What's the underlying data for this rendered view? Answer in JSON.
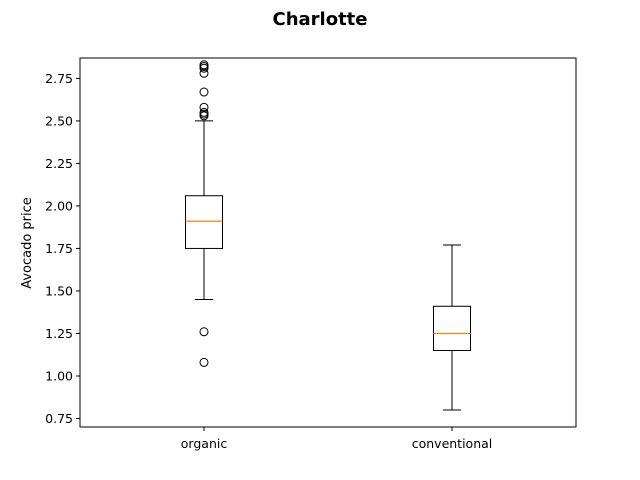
{
  "chart_data": {
    "type": "boxplot",
    "title": "Charlotte",
    "xlabel": "",
    "ylabel": "Avocado price",
    "categories": [
      "organic",
      "conventional"
    ],
    "ylim": [
      0.7,
      2.87
    ],
    "yticks": [
      0.75,
      1.0,
      1.25,
      1.5,
      1.75,
      2.0,
      2.25,
      2.5,
      2.75
    ],
    "ytick_labels": [
      "0.75",
      "1.00",
      "1.25",
      "1.50",
      "1.75",
      "2.00",
      "2.25",
      "2.50",
      "2.75"
    ],
    "grid": false,
    "boxes": [
      {
        "category": "organic",
        "whisker_low": 1.45,
        "q1": 1.75,
        "median": 1.91,
        "q3": 2.06,
        "whisker_high": 2.5,
        "outliers": [
          1.08,
          1.26,
          2.53,
          2.54,
          2.55,
          2.58,
          2.67,
          2.78,
          2.81,
          2.82,
          2.83
        ]
      },
      {
        "category": "conventional",
        "whisker_low": 0.8,
        "q1": 1.15,
        "median": 1.25,
        "q3": 1.41,
        "whisker_high": 1.77,
        "outliers": []
      }
    ],
    "colors": {
      "box": "#000000",
      "median": "#ff7f0e",
      "outlier": "#000000"
    }
  }
}
